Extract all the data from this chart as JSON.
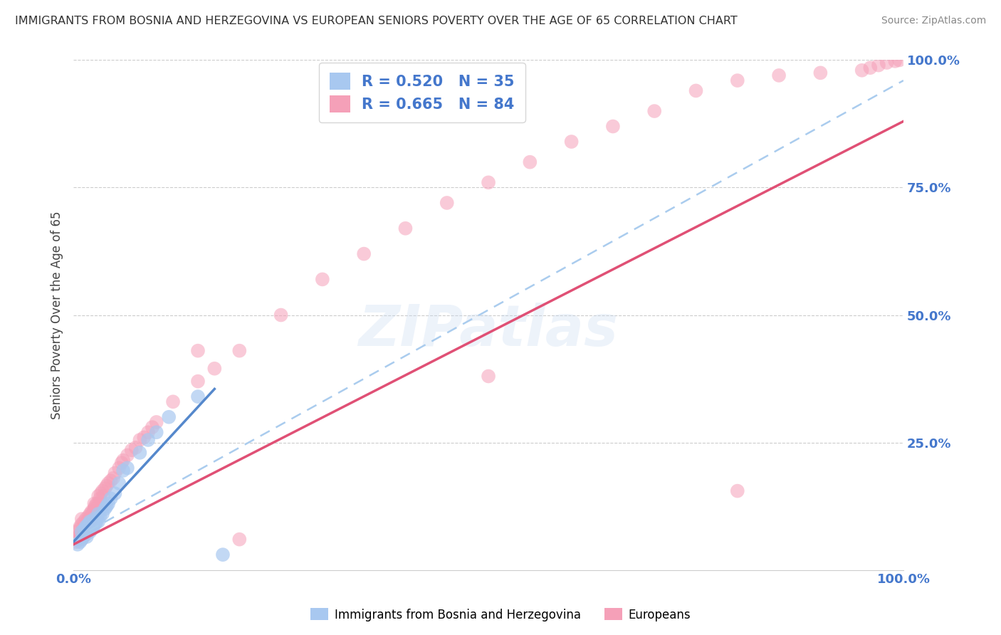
{
  "title": "IMMIGRANTS FROM BOSNIA AND HERZEGOVINA VS EUROPEAN SENIORS POVERTY OVER THE AGE OF 65 CORRELATION CHART",
  "source": "Source: ZipAtlas.com",
  "ylabel": "Seniors Poverty Over the Age of 65",
  "legend_label1": "Immigrants from Bosnia and Herzegovina",
  "legend_label2": "Europeans",
  "r1": 0.52,
  "n1": 35,
  "r2": 0.665,
  "n2": 84,
  "color1": "#a8c8f0",
  "color2": "#f5a0b8",
  "line1_color": "#5588cc",
  "line2_color": "#e05075",
  "line1_dash_color": "#aaccee",
  "watermark": "ZIPatlas",
  "background_color": "#ffffff",
  "grid_color": "#cccccc",
  "title_color": "#333333",
  "axis_label_color": "#4477cc",
  "xlim": [
    0,
    1
  ],
  "ylim": [
    0,
    1
  ],
  "yticks": [
    0.25,
    0.5,
    0.75,
    1.0
  ],
  "yticklabels": [
    "25.0%",
    "50.0%",
    "75.0%",
    "100.0%"
  ],
  "xtick_left": "0.0%",
  "xtick_right": "100.0%",
  "bosnia_x": [
    0.005,
    0.008,
    0.01,
    0.01,
    0.012,
    0.013,
    0.015,
    0.015,
    0.016,
    0.018,
    0.02,
    0.02,
    0.022,
    0.024,
    0.025,
    0.026,
    0.028,
    0.03,
    0.03,
    0.032,
    0.035,
    0.038,
    0.04,
    0.042,
    0.045,
    0.05,
    0.055,
    0.06,
    0.065,
    0.08,
    0.09,
    0.1,
    0.115,
    0.15,
    0.18
  ],
  "bosnia_y": [
    0.05,
    0.055,
    0.06,
    0.075,
    0.065,
    0.08,
    0.07,
    0.085,
    0.065,
    0.09,
    0.075,
    0.095,
    0.08,
    0.085,
    0.1,
    0.09,
    0.095,
    0.095,
    0.11,
    0.105,
    0.11,
    0.12,
    0.125,
    0.13,
    0.14,
    0.15,
    0.17,
    0.195,
    0.2,
    0.23,
    0.255,
    0.27,
    0.3,
    0.34,
    0.03
  ],
  "europe_x": [
    0.003,
    0.005,
    0.005,
    0.006,
    0.007,
    0.008,
    0.008,
    0.009,
    0.01,
    0.01,
    0.01,
    0.012,
    0.013,
    0.013,
    0.015,
    0.015,
    0.015,
    0.016,
    0.017,
    0.018,
    0.018,
    0.019,
    0.02,
    0.02,
    0.021,
    0.022,
    0.022,
    0.023,
    0.024,
    0.025,
    0.025,
    0.026,
    0.028,
    0.03,
    0.03,
    0.032,
    0.033,
    0.035,
    0.036,
    0.038,
    0.04,
    0.042,
    0.045,
    0.048,
    0.05,
    0.055,
    0.058,
    0.06,
    0.065,
    0.07,
    0.075,
    0.08,
    0.085,
    0.09,
    0.095,
    0.1,
    0.12,
    0.15,
    0.17,
    0.2,
    0.25,
    0.3,
    0.35,
    0.4,
    0.45,
    0.5,
    0.55,
    0.6,
    0.65,
    0.7,
    0.75,
    0.8,
    0.85,
    0.9,
    0.95,
    0.96,
    0.97,
    0.98,
    0.99,
    0.995,
    0.8,
    0.5,
    0.15,
    0.2
  ],
  "europe_y": [
    0.055,
    0.06,
    0.075,
    0.065,
    0.08,
    0.07,
    0.085,
    0.065,
    0.06,
    0.09,
    0.1,
    0.075,
    0.08,
    0.095,
    0.07,
    0.085,
    0.1,
    0.09,
    0.095,
    0.08,
    0.105,
    0.1,
    0.095,
    0.11,
    0.105,
    0.1,
    0.115,
    0.11,
    0.115,
    0.12,
    0.13,
    0.125,
    0.13,
    0.13,
    0.145,
    0.14,
    0.15,
    0.155,
    0.145,
    0.16,
    0.165,
    0.17,
    0.175,
    0.18,
    0.19,
    0.2,
    0.21,
    0.215,
    0.225,
    0.235,
    0.24,
    0.255,
    0.26,
    0.27,
    0.28,
    0.29,
    0.33,
    0.37,
    0.395,
    0.43,
    0.5,
    0.57,
    0.62,
    0.67,
    0.72,
    0.76,
    0.8,
    0.84,
    0.87,
    0.9,
    0.94,
    0.96,
    0.97,
    0.975,
    0.98,
    0.985,
    0.99,
    0.995,
    0.998,
    1.0,
    0.155,
    0.38,
    0.43,
    0.06
  ],
  "bosnia_line": [
    [
      0.0,
      0.055
    ],
    [
      0.17,
      0.355
    ]
  ],
  "europe_line": [
    [
      0.0,
      0.05
    ],
    [
      1.0,
      0.88
    ]
  ],
  "europe_dash_line": [
    [
      0.0,
      0.06
    ],
    [
      1.0,
      0.96
    ]
  ]
}
